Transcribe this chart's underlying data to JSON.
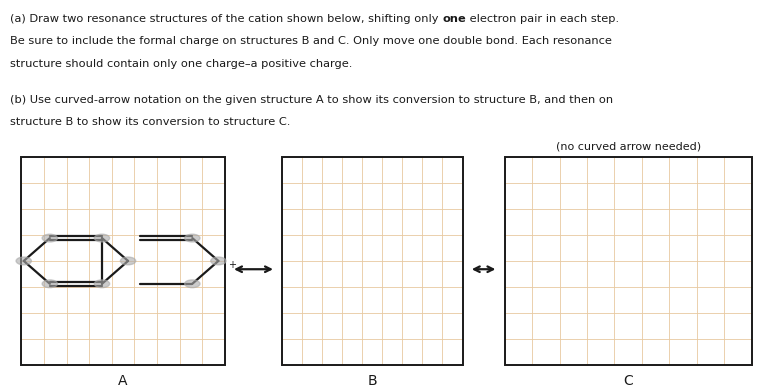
{
  "bg_color": "#ffffff",
  "grid_color": "#e8c9a0",
  "box_color": "#1a1a1a",
  "molecule_color": "#1a1a1a",
  "dot_color": "#aaaaaa",
  "arrow_color": "#1a1a1a",
  "text_color": "#1a1a1a",
  "text_lines_a": [
    "(a) Draw two resonance structures of the cation shown below, shifting only ",
    "one",
    " electron pair in each step.",
    "Be sure to include the formal charge on structures B and C. Only move one double bond. Each resonance",
    "structure should contain only one charge–a positive charge."
  ],
  "text_lines_b": [
    "(b) Use curved-arrow notation on the given structure A to show its conversion to structure B, and then on",
    "structure B to show its conversion to structure C."
  ],
  "label_no_arrow": "(no curved arrow needed)",
  "labels": [
    "A",
    "B",
    "C"
  ],
  "b1": [
    0.028,
    0.06,
    0.265,
    0.535
  ],
  "b2": [
    0.368,
    0.06,
    0.235,
    0.535
  ],
  "b3": [
    0.658,
    0.06,
    0.322,
    0.535
  ],
  "grid_rows": 8,
  "grid_cols": 9
}
